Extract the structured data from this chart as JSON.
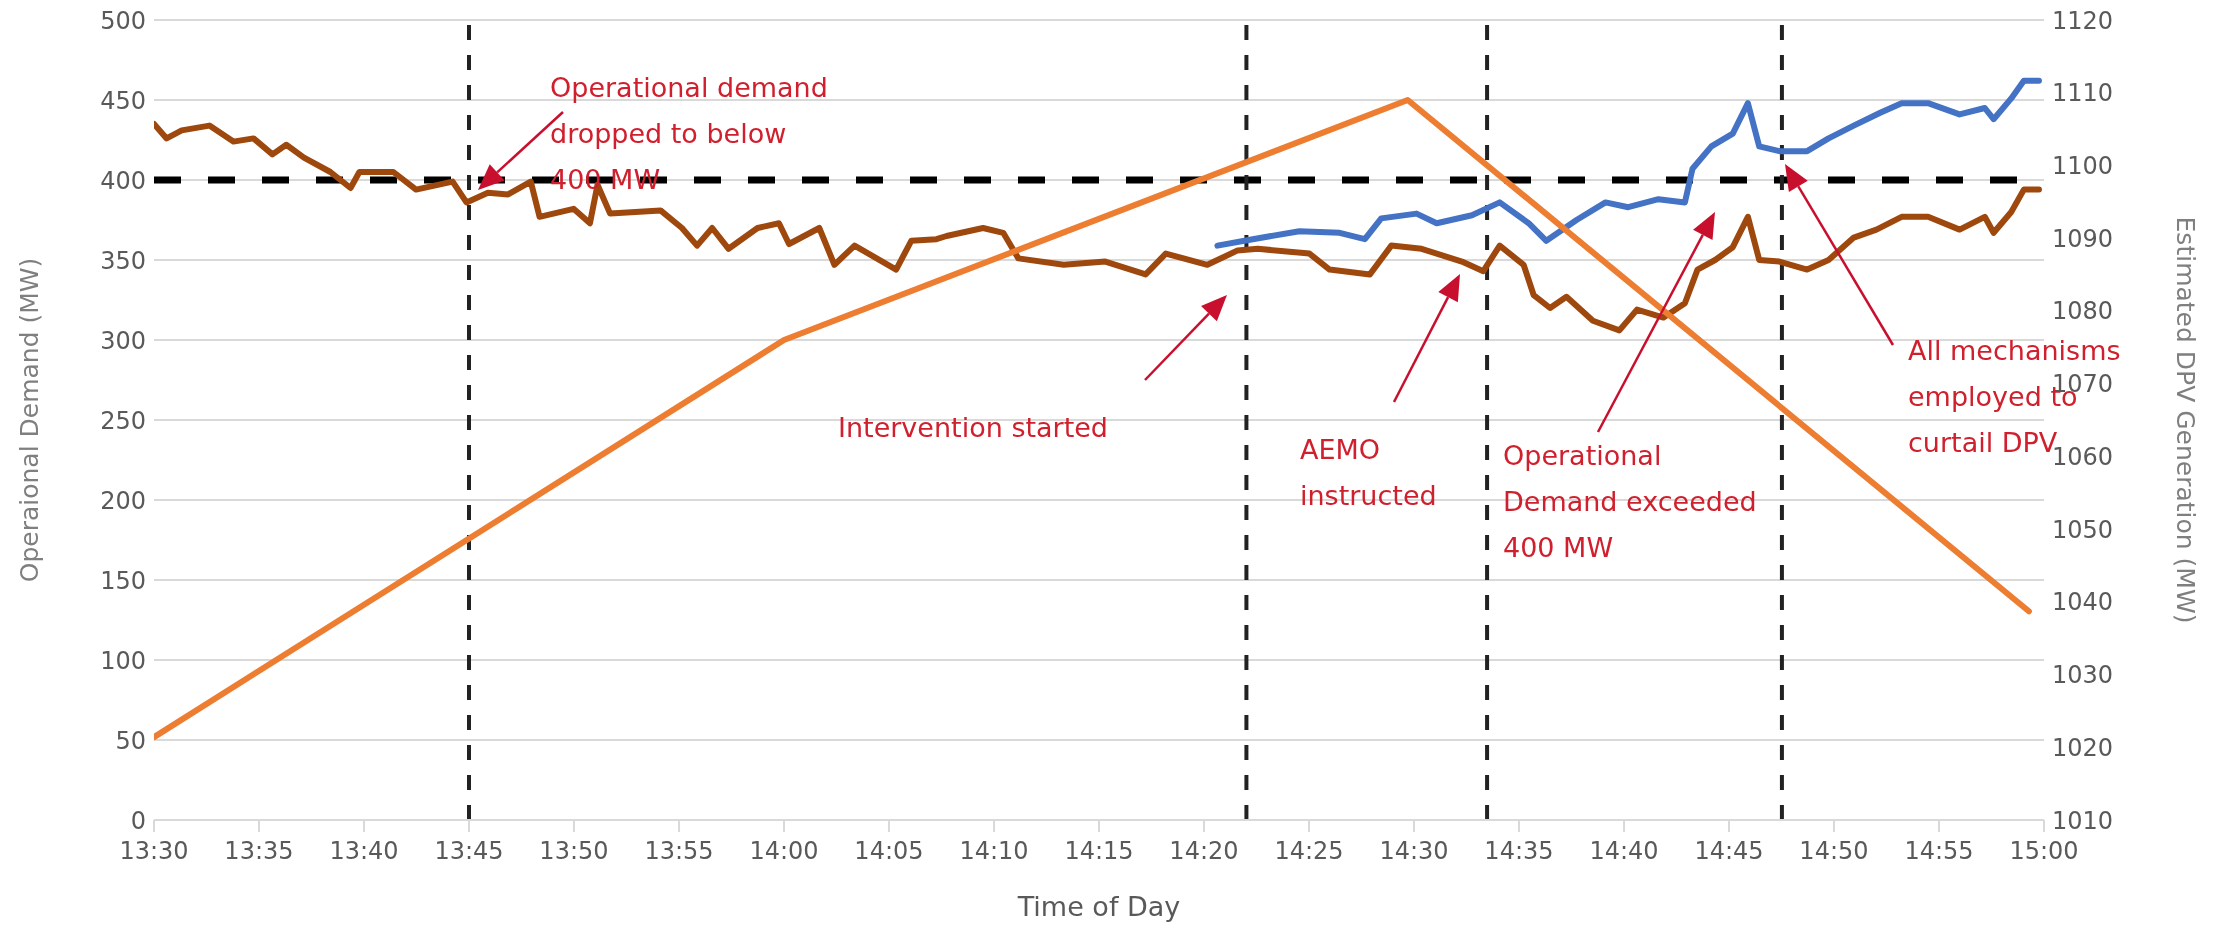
{
  "chart_data": {
    "type": "line",
    "xlabel": "Time of Day",
    "ylabel": "Operaional Demand (MW)",
    "y2label": "Estimated DPV Generation (MW)",
    "xlim": [
      13.5,
      15
    ],
    "xticks": [
      {
        "value": 13.5,
        "label": "13:30"
      },
      {
        "value": 13.5833,
        "label": "13:35"
      },
      {
        "value": 13.6667,
        "label": "13:40"
      },
      {
        "value": 13.75,
        "label": "13:45"
      },
      {
        "value": 13.8333,
        "label": "13:50"
      },
      {
        "value": 13.9167,
        "label": "13:55"
      },
      {
        "value": 14,
        "label": "14:00"
      },
      {
        "value": 14.0833,
        "label": "14:05"
      },
      {
        "value": 14.1667,
        "label": "14:10"
      },
      {
        "value": 14.25,
        "label": "14:15"
      },
      {
        "value": 14.3333,
        "label": "14:20"
      },
      {
        "value": 14.4167,
        "label": "14:25"
      },
      {
        "value": 14.5,
        "label": "14:30"
      },
      {
        "value": 14.5833,
        "label": "14:35"
      },
      {
        "value": 14.6667,
        "label": "14:40"
      },
      {
        "value": 14.75,
        "label": "14:45"
      },
      {
        "value": 14.8333,
        "label": "14:50"
      },
      {
        "value": 14.9167,
        "label": "14:55"
      },
      {
        "value": 15,
        "label": "15:00"
      }
    ],
    "ylim": [
      0,
      500
    ],
    "yticks": [
      0,
      50,
      100,
      150,
      200,
      250,
      300,
      350,
      400,
      450,
      500
    ],
    "y2lim": [
      1010,
      1120
    ],
    "y2ticks": [
      1010,
      1020,
      1030,
      1040,
      1050,
      1060,
      1070,
      1080,
      1090,
      1100,
      1110,
      1120
    ],
    "grid": "y",
    "line_style": "solid",
    "series": [
      {
        "color": "#4472c4",
        "x": [
          14.344,
          14.372,
          14.409,
          14.441,
          14.461,
          14.474,
          14.502,
          14.518,
          14.546,
          14.568,
          14.591,
          14.605,
          14.629,
          14.652,
          14.67,
          14.694,
          14.715,
          14.721,
          14.736,
          14.753,
          14.765,
          14.774,
          14.79,
          14.812,
          14.829,
          14.849,
          14.87,
          14.887,
          14.908,
          14.933,
          14.953,
          14.96,
          14.974,
          14.984,
          14.996
        ],
        "values": [
          359,
          363,
          368,
          367,
          363,
          376,
          379,
          373,
          378,
          386,
          373,
          362,
          375,
          386,
          383,
          388,
          386,
          407,
          421,
          429,
          448,
          421,
          418,
          418,
          426,
          434,
          442,
          448,
          448,
          441,
          445,
          438,
          451,
          462,
          462
        ]
      },
      {
        "color": "#9e480e",
        "x": [
          13.5,
          13.51,
          13.522,
          13.544,
          13.563,
          13.579,
          13.594,
          13.605,
          13.619,
          13.64,
          13.656,
          13.663,
          13.69,
          13.708,
          13.737,
          13.748,
          13.765,
          13.781,
          13.799,
          13.806,
          13.833,
          13.846,
          13.852,
          13.862,
          13.902,
          13.919,
          13.931,
          13.943,
          13.956,
          13.979,
          13.996,
          14.004,
          14.028,
          14.04,
          14.056,
          14.089,
          14.101,
          14.121,
          14.129,
          14.158,
          14.174,
          14.186,
          14.222,
          14.255,
          14.287,
          14.303,
          14.336,
          14.36,
          14.376,
          14.417,
          14.433,
          14.465,
          14.482,
          14.506,
          14.538,
          14.555,
          14.568,
          14.587,
          14.595,
          14.608,
          14.621,
          14.642,
          14.663,
          14.677,
          14.698,
          14.715,
          14.725,
          14.739,
          14.753,
          14.765,
          14.774,
          14.79,
          14.812,
          14.829,
          14.849,
          14.867,
          14.887,
          14.908,
          14.933,
          14.953,
          14.96,
          14.974,
          14.984,
          14.996
        ],
        "values": [
          435,
          426,
          431,
          434,
          424,
          426,
          416,
          422,
          414,
          405,
          395,
          405,
          405,
          394,
          399,
          386,
          392,
          391,
          399,
          377,
          382,
          373,
          397,
          379,
          381,
          370,
          359,
          370,
          357,
          370,
          373,
          360,
          370,
          347,
          359,
          344,
          362,
          363,
          365,
          370,
          367,
          351,
          347,
          349,
          341,
          354,
          347,
          356,
          357,
          354,
          344,
          341,
          359,
          357,
          349,
          343,
          359,
          347,
          328,
          320,
          327,
          312,
          306,
          319,
          314,
          323,
          344,
          350,
          358,
          377,
          350,
          349,
          344,
          350,
          364,
          369,
          377,
          377,
          369,
          377,
          367,
          380,
          394,
          394
        ]
      },
      {
        "color": "#ed7d31",
        "axis": "y2",
        "x": [
          13.5,
          14,
          14.495,
          14.988
        ],
        "values": [
          1021.4,
          1076,
          1109,
          1038.7
        ]
      }
    ],
    "ref_lines": [
      {
        "axis": "y",
        "value": 400,
        "color": "#000000",
        "line_style": "dashed"
      },
      {
        "axis": "x",
        "value": 13.75,
        "color": "#222222",
        "line_style": "dashed"
      },
      {
        "axis": "x",
        "value": 14.367,
        "color": "#222222",
        "line_style": "dashed"
      },
      {
        "axis": "x",
        "value": 14.558,
        "color": "#222222",
        "line_style": "dashed"
      },
      {
        "axis": "x",
        "value": 14.792,
        "color": "#222222",
        "line_style": "dashed"
      }
    ],
    "annotations": [
      "Operational demand dropped to below 400 MW",
      "Intervention started",
      "AEMO instructed",
      "Operational Demand exceeded 400 MW",
      "All mechanisms employed to curtail DPV"
    ]
  }
}
